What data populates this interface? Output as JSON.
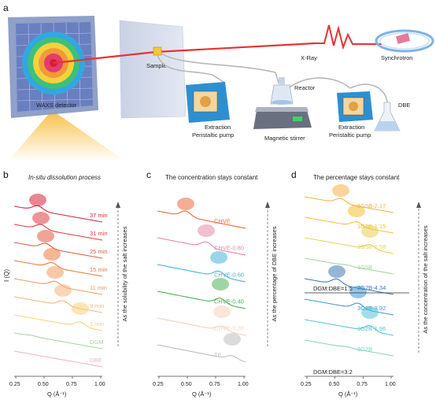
{
  "panel_a": {
    "letter": "a",
    "labels": {
      "waxs": "WAXS detector",
      "sample": "Sample",
      "xray": "X-Ray",
      "synchrotron": "Synchrotron",
      "reactor": "Reactor",
      "dbe": "DBE",
      "pump_left_l1": "Extraction",
      "pump_left_l2": "Peristaltic pump",
      "stirrer": "Magnetic stirrer",
      "pump_right_l1": "Extraction",
      "pump_right_l2": "Peristaltic pump"
    }
  },
  "panel_b": {
    "letter": "b",
    "title": "In-situ dissolution process",
    "ylabel": "I (Q)",
    "side_note": "As the solubility of the salt increases",
    "curves": [
      "37 min",
      "31 min",
      "25 min",
      "15 min",
      "11 min",
      "9 min",
      "1 min",
      "DGM",
      "DBE"
    ]
  },
  "panel_c": {
    "letter": "c",
    "title": "The concentration stays constant",
    "side_note": "As the percentage of DBE increases",
    "curves": [
      "CHVE",
      "CHVE-0.80",
      "CHVE-0.60",
      "CHVE-0.40",
      "CHVE-0.20",
      "TE"
    ]
  },
  "panel_d": {
    "letter": "d",
    "title": "The percentage stays constant",
    "side_note": "As the concentration of the salt increases",
    "group1_label": "DGM:DBE=1:5",
    "group2_label": "DGM:DBE=3:2",
    "curves_top": [
      "1G5B-2.17",
      "1G5B-1.15",
      "1G5B-0.58",
      "1G5B"
    ],
    "curves_bottom": [
      "3G2B-4.34",
      "3G2B-3.92",
      "3G2B-1.96",
      "3G2B"
    ]
  },
  "axis": {
    "xlabel": "Q (Å⁻¹)",
    "ticks": [
      "0.25",
      "0.50",
      "0.75",
      "1.00"
    ]
  },
  "colors": {
    "laser": "#e63333",
    "b_curves": [
      "#d9233a",
      "#e03b3f",
      "#e5573d",
      "#ec7a3c",
      "#f29a62",
      "#f6b47b",
      "#f9d27a",
      "#a8d49a",
      "#f3b2ba"
    ],
    "c_curves": [
      "#ee6a3a",
      "#e58aa7",
      "#48b3d8",
      "#4fb25a",
      "#f9cfb9",
      "#bdbdbd"
    ],
    "d_curves_top": [
      "#f8b14a",
      "#f3c132",
      "#e8d054",
      "#9ed69a"
    ],
    "d_curves_bottom": [
      "#3f77b6",
      "#3e99d3",
      "#54c3dc",
      "#88d2bf"
    ]
  }
}
